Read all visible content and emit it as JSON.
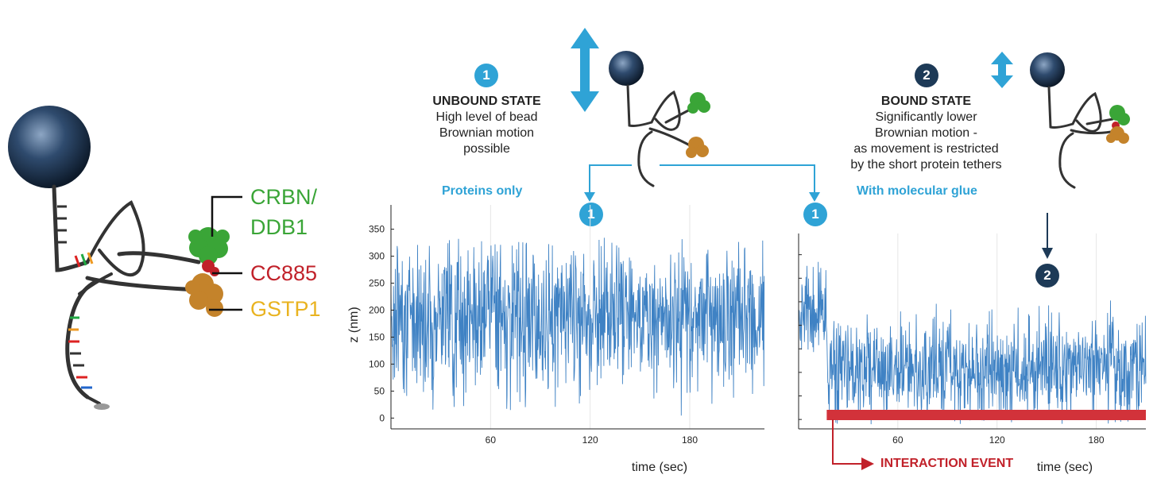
{
  "labels": {
    "crbn_line1": "CRBN/",
    "crbn_line2": "DDB1",
    "cc885": "CC885",
    "gstp1": "GSTP1"
  },
  "colors": {
    "crbn": "#3aa537",
    "cc885": "#c1212a",
    "gstp1": "#e9b320",
    "accent_blue": "#2fa3d6",
    "dark_navy": "#1d3a57",
    "trace": "#3f82c4",
    "interaction_bar": "#d2323a"
  },
  "unbound": {
    "badge": "1",
    "title": "UNBOUND STATE",
    "line1": "High level of bead",
    "line2": "Brownian motion",
    "line3": "possible"
  },
  "bound": {
    "badge": "2",
    "title": "BOUND STATE",
    "line1": "Significantly lower",
    "line2": "Brownian motion -",
    "line3": "as movement is restricted",
    "line4": "by the short protein tethers"
  },
  "captions": {
    "proteins_only": "Proteins only",
    "with_glue": "With molecular glue",
    "interaction_event": "INTERACTION EVENT"
  },
  "badges": {
    "left_plot": "1",
    "right_plot_start": "1",
    "right_plot_bound": "2"
  },
  "chart_data": [
    {
      "type": "line",
      "title": "Proteins only",
      "xlabel": "time (sec)",
      "ylabel": "z (nm)",
      "xlim": [
        0,
        225
      ],
      "ylim": [
        -20,
        395
      ],
      "x_ticks": [
        60,
        120,
        180
      ],
      "y_ticks": [
        0,
        50,
        100,
        150,
        200,
        250,
        300,
        350
      ],
      "series": [
        {
          "mean": 190,
          "amplitude": 105,
          "x_range": [
            0,
            225
          ]
        }
      ]
    },
    {
      "type": "line",
      "title": "With molecular glue",
      "xlabel": "time (sec)",
      "ylabel": "",
      "xlim": [
        0,
        210
      ],
      "ylim": [
        -20,
        395
      ],
      "x_ticks": [
        60,
        120,
        180
      ],
      "series": [
        {
          "mean": 230,
          "amplitude": 75,
          "x_range": [
            0,
            17
          ]
        },
        {
          "mean": 105,
          "amplitude": 80,
          "x_range": [
            17,
            210
          ]
        }
      ],
      "interaction_start_sec": 17,
      "interaction_label": "INTERACTION EVENT"
    }
  ]
}
